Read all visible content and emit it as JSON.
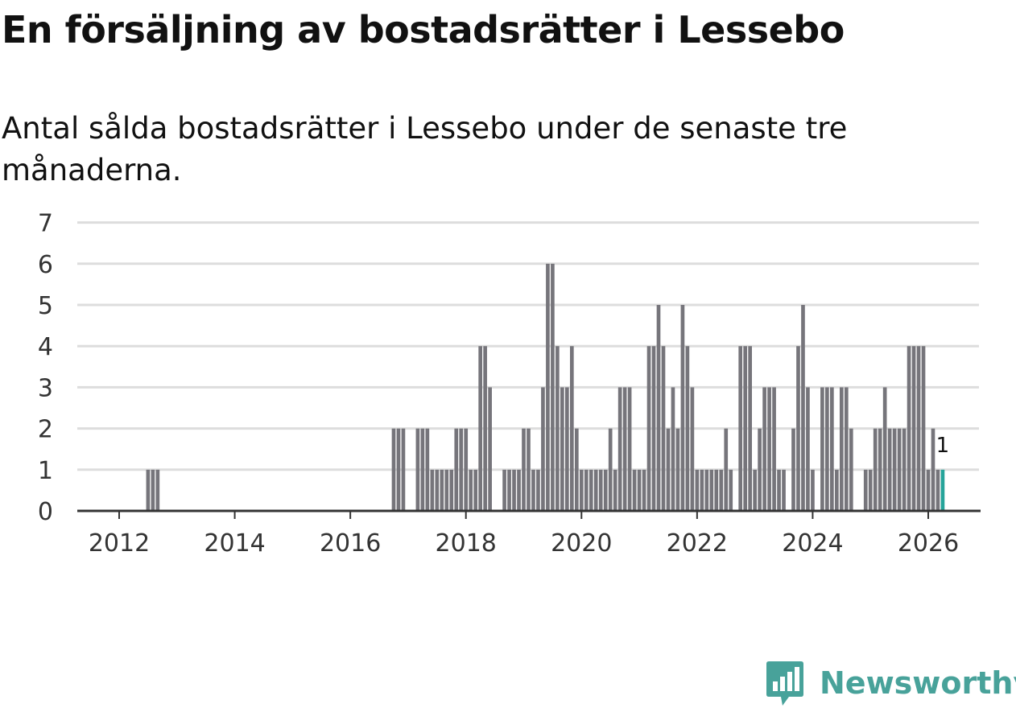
{
  "title": "En försäljning av bostadsrätter i Lessebo",
  "subtitle": "Antal sålda bostadsrätter i Lessebo under de senaste tre månaderna.",
  "brand": {
    "name": "Newsworthy",
    "icon": "newsworthy-logo-icon",
    "color": "#48A29A"
  },
  "colors": {
    "bar": "#76757B",
    "highlight": "#26A49A",
    "grid": "#dddddd",
    "axis": "#333333"
  },
  "chart_data": {
    "type": "bar",
    "title": "En försäljning av bostadsrätter i Lessebo",
    "xlabel": "",
    "ylabel": "",
    "ylim": [
      0,
      7
    ],
    "yticks": [
      "0",
      "1",
      "2",
      "3",
      "4",
      "5",
      "6",
      "7"
    ],
    "xticks": [
      "2012",
      "2014",
      "2016",
      "2018",
      "2020",
      "2022",
      "2024",
      "2026"
    ],
    "grid": true,
    "x_start": "2011-01",
    "x_end": "2026-09",
    "values": {
      "2012-07": 1,
      "2012-08": 1,
      "2012-09": 1,
      "2016-10": 2,
      "2016-11": 2,
      "2016-12": 2,
      "2017-03": 2,
      "2017-04": 2,
      "2017-05": 2,
      "2017-06": 1,
      "2017-07": 1,
      "2017-08": 1,
      "2017-09": 1,
      "2017-10": 1,
      "2017-11": 2,
      "2017-12": 2,
      "2018-01": 2,
      "2018-02": 1,
      "2018-03": 1,
      "2018-04": 4,
      "2018-05": 4,
      "2018-06": 3,
      "2018-09": 1,
      "2018-10": 1,
      "2018-11": 1,
      "2018-12": 1,
      "2019-01": 2,
      "2019-02": 2,
      "2019-03": 1,
      "2019-04": 1,
      "2019-05": 3,
      "2019-06": 6,
      "2019-07": 6,
      "2019-08": 4,
      "2019-09": 3,
      "2019-10": 3,
      "2019-11": 4,
      "2019-12": 2,
      "2020-01": 1,
      "2020-02": 1,
      "2020-03": 1,
      "2020-04": 1,
      "2020-05": 1,
      "2020-06": 1,
      "2020-07": 2,
      "2020-08": 1,
      "2020-09": 3,
      "2020-10": 3,
      "2020-11": 3,
      "2020-12": 1,
      "2021-01": 1,
      "2021-02": 1,
      "2021-03": 4,
      "2021-04": 4,
      "2021-05": 5,
      "2021-06": 4,
      "2021-07": 2,
      "2021-08": 3,
      "2021-09": 2,
      "2021-10": 5,
      "2021-11": 4,
      "2021-12": 3,
      "2022-01": 1,
      "2022-02": 1,
      "2022-03": 1,
      "2022-04": 1,
      "2022-05": 1,
      "2022-06": 1,
      "2022-07": 2,
      "2022-08": 1,
      "2022-10": 4,
      "2022-11": 4,
      "2022-12": 4,
      "2023-01": 1,
      "2023-02": 2,
      "2023-03": 3,
      "2023-04": 3,
      "2023-05": 3,
      "2023-06": 1,
      "2023-07": 1,
      "2023-09": 2,
      "2023-10": 4,
      "2023-11": 5,
      "2023-12": 3,
      "2024-01": 1,
      "2024-03": 3,
      "2024-04": 3,
      "2024-05": 3,
      "2024-06": 1,
      "2024-07": 3,
      "2024-08": 3,
      "2024-09": 2,
      "2024-12": 1,
      "2025-01": 1,
      "2025-02": 2,
      "2025-03": 2,
      "2025-04": 3,
      "2025-05": 2,
      "2025-06": 2,
      "2025-07": 2,
      "2025-08": 2,
      "2025-09": 4,
      "2025-10": 4,
      "2025-11": 4,
      "2025-12": 4,
      "2026-01": 1,
      "2026-02": 2,
      "2026-03": 1,
      "2026-04": 1
    },
    "highlight": {
      "month": "2026-04",
      "value": 1,
      "label": "1"
    }
  }
}
